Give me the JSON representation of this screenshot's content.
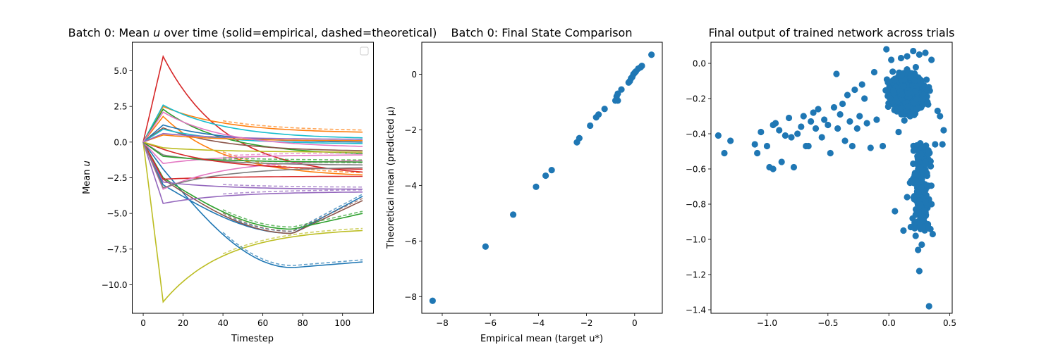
{
  "figure": {
    "background": "#ffffff"
  },
  "chart_data": [
    {
      "id": "left",
      "type": "line",
      "title": "Batch 0: Mean u over time (solid=empirical, dashed=theoretical)",
      "title_parts": [
        "Batch 0: Mean ",
        "u",
        " over time (solid=empirical, dashed=theoretical)"
      ],
      "xlabel": "Timestep",
      "ylabel_parts": [
        "Mean ",
        "u"
      ],
      "xlim": [
        -5.5,
        115.5
      ],
      "ylim": [
        -12.0,
        7.0
      ],
      "xticks": [
        0,
        20,
        40,
        60,
        80,
        100
      ],
      "xtick_labels": [
        "0",
        "20",
        "40",
        "60",
        "80",
        "100"
      ],
      "yticks": [
        -10.0,
        -7.5,
        -5.0,
        -2.5,
        0.0,
        2.5,
        5.0
      ],
      "ytick_labels": [
        "−10.0",
        "−7.5",
        "−5.0",
        "−2.5",
        "0.0",
        "2.5",
        "5.0"
      ],
      "grid": false,
      "legend": "top-right (empty)",
      "series": [
        {
          "color": "#d62728",
          "peak": 6.0,
          "final": -2.1,
          "dashed": false
        },
        {
          "color": "#bcbd22",
          "peak": -11.2,
          "final": -6.2,
          "dashed": true
        },
        {
          "color": "#1f77b4",
          "peak": -1.9,
          "final": -8.4,
          "min": -8.8,
          "dashed": true
        },
        {
          "color": "#1f77b4",
          "peak": -3.0,
          "final": -3.8,
          "min": -6.4,
          "dashed": true
        },
        {
          "color": "#8c564b",
          "peak": -2.6,
          "final": -4.1,
          "min": -6.4,
          "dashed": true
        },
        {
          "color": "#2ca02c",
          "peak": -2.5,
          "final": -5.0,
          "min": -6.1,
          "dashed": true
        },
        {
          "color": "#9467bd",
          "peak": -4.3,
          "final": -3.5,
          "dashed": true
        },
        {
          "color": "#9467bd",
          "peak": -2.8,
          "final": -3.3,
          "dashed": true
        },
        {
          "color": "#ff7f0e",
          "peak": 2.5,
          "final": 0.7,
          "dashed": true
        },
        {
          "color": "#17becf",
          "peak": 2.6,
          "final": 0.3,
          "dashed": false
        },
        {
          "color": "#2ca02c",
          "peak": 2.3,
          "final": -0.8,
          "dashed": false
        },
        {
          "color": "#ff7f0e",
          "peak": 1.8,
          "final": -2.3,
          "dashed": true
        },
        {
          "color": "#d62728",
          "peak": -2.6,
          "final": -2.4,
          "dashed": false
        },
        {
          "color": "#e377c2",
          "peak": -1.5,
          "final": -0.9,
          "dashed": true
        },
        {
          "color": "#e377c2",
          "peak": -3.3,
          "final": -1.3,
          "dashed": false
        },
        {
          "color": "#7f7f7f",
          "peak": -0.9,
          "final": -1.6,
          "dashed": true
        },
        {
          "color": "#1f77b4",
          "peak": 1.2,
          "final": 0.0,
          "dashed": false
        },
        {
          "color": "#2ca02c",
          "peak": -1.0,
          "final": -1.4,
          "dashed": true
        },
        {
          "color": "#8c564b",
          "peak": 1.0,
          "final": -0.6,
          "dashed": false
        },
        {
          "color": "#17becf",
          "peak": 0.9,
          "final": -0.1,
          "dashed": false
        },
        {
          "color": "#d62728",
          "peak": -0.5,
          "final": -1.9,
          "dashed": false
        },
        {
          "color": "#ff7f0e",
          "peak": 0.5,
          "final": 0.1,
          "dashed": false
        },
        {
          "color": "#bcbd22",
          "peak": -0.4,
          "final": -0.7,
          "dashed": false
        },
        {
          "color": "#9467bd",
          "peak": 0.6,
          "final": 0.2,
          "dashed": false
        },
        {
          "color": "#e377c2",
          "peak": 2.1,
          "final": -0.3,
          "dashed": false
        },
        {
          "color": "#7f7f7f",
          "peak": -3.2,
          "final": -1.8,
          "dashed": false
        }
      ]
    },
    {
      "id": "middle",
      "type": "scatter",
      "title": "Batch 0: Final State Comparison",
      "xlabel": "Empirical mean (target u*)",
      "ylabel": "Theoretical mean (predicted μ)",
      "xlim": [
        -8.85,
        1.15
      ],
      "ylim": [
        -8.6,
        1.15
      ],
      "xticks": [
        -8,
        -6,
        -4,
        -2,
        0
      ],
      "xtick_labels": [
        "−8",
        "−6",
        "−4",
        "−2",
        "0"
      ],
      "yticks": [
        -8,
        -6,
        -4,
        -2,
        0
      ],
      "ytick_labels": [
        "−8",
        "−6",
        "−4",
        "−2",
        "0"
      ],
      "grid": false,
      "color": "#1f77b4",
      "points": [
        [
          -8.4,
          -8.15
        ],
        [
          -6.2,
          -6.2
        ],
        [
          -5.05,
          -5.05
        ],
        [
          -4.1,
          -4.05
        ],
        [
          -3.7,
          -3.65
        ],
        [
          -3.45,
          -3.45
        ],
        [
          -2.4,
          -2.45
        ],
        [
          -2.3,
          -2.3
        ],
        [
          -1.85,
          -1.85
        ],
        [
          -1.6,
          -1.55
        ],
        [
          -1.5,
          -1.45
        ],
        [
          -1.25,
          -1.25
        ],
        [
          -0.8,
          -0.95
        ],
        [
          -0.75,
          -0.8
        ],
        [
          -0.7,
          -0.7
        ],
        [
          -0.55,
          -0.55
        ],
        [
          -0.7,
          -0.95
        ],
        [
          -0.25,
          -0.3
        ],
        [
          -0.2,
          -0.25
        ],
        [
          -0.15,
          -0.15
        ],
        [
          -0.1,
          -0.1
        ],
        [
          -0.05,
          0.0
        ],
        [
          0.0,
          0.05
        ],
        [
          0.05,
          0.1
        ],
        [
          0.15,
          0.2
        ],
        [
          0.25,
          0.25
        ],
        [
          0.3,
          0.3
        ],
        [
          0.7,
          0.7
        ]
      ]
    },
    {
      "id": "right",
      "type": "scatter",
      "title": "Final output of trained network across trials",
      "xlim": [
        -1.46,
        0.52
      ],
      "ylim": [
        -1.42,
        0.12
      ],
      "xticks": [
        -1.0,
        -0.5,
        0.0,
        0.5
      ],
      "xtick_labels": [
        "−1.0",
        "−0.5",
        "0.0",
        "0.5"
      ],
      "yticks": [
        -1.4,
        -1.2,
        -1.0,
        -0.8,
        -0.6,
        -0.4,
        -0.2,
        0.0
      ],
      "ytick_labels": [
        "−1.4",
        "−1.2",
        "−1.0",
        "−0.8",
        "−0.6",
        "−0.4",
        "−0.2",
        "0.0"
      ],
      "grid": false,
      "color": "#1f77b4",
      "points": [
        [
          -1.4,
          -0.41
        ],
        [
          -1.35,
          -0.51
        ],
        [
          -1.3,
          -0.44
        ],
        [
          -1.1,
          -0.46
        ],
        [
          -1.08,
          -0.51
        ],
        [
          -1.05,
          -0.39
        ],
        [
          -1.0,
          -0.47
        ],
        [
          -0.98,
          -0.59
        ],
        [
          -0.95,
          -0.6
        ],
        [
          -0.95,
          -0.35
        ],
        [
          -0.93,
          -0.34
        ],
        [
          -0.9,
          -0.38
        ],
        [
          -0.88,
          -0.56
        ],
        [
          -0.85,
          -0.41
        ],
        [
          -0.82,
          -0.31
        ],
        [
          -0.8,
          -0.42
        ],
        [
          -0.78,
          -0.59
        ],
        [
          -0.75,
          -0.4
        ],
        [
          -0.72,
          -0.36
        ],
        [
          -0.7,
          -0.3
        ],
        [
          -0.68,
          -0.47
        ],
        [
          -0.66,
          -0.47
        ],
        [
          -0.64,
          -0.33
        ],
        [
          -0.62,
          -0.28
        ],
        [
          -0.6,
          -0.37
        ],
        [
          -0.58,
          -0.26
        ],
        [
          -0.55,
          -0.42
        ],
        [
          -0.53,
          -0.32
        ],
        [
          -0.5,
          -0.35
        ],
        [
          -0.48,
          -0.51
        ],
        [
          -0.45,
          -0.25
        ],
        [
          -0.43,
          -0.06
        ],
        [
          -0.42,
          -0.37
        ],
        [
          -0.4,
          -0.29
        ],
        [
          -0.38,
          -0.23
        ],
        [
          -0.36,
          -0.44
        ],
        [
          -0.34,
          -0.18
        ],
        [
          -0.32,
          -0.33
        ],
        [
          -0.3,
          -0.47
        ],
        [
          -0.28,
          -0.15
        ],
        [
          -0.26,
          -0.37
        ],
        [
          -0.24,
          -0.3
        ],
        [
          -0.22,
          -0.12
        ],
        [
          -0.2,
          -0.2
        ],
        [
          -0.18,
          -0.34
        ],
        [
          -0.15,
          -0.48
        ],
        [
          -0.12,
          -0.05
        ],
        [
          -0.1,
          -0.32
        ],
        [
          -0.05,
          -0.47
        ],
        [
          -0.02,
          0.08
        ],
        [
          0.02,
          0.02
        ],
        [
          0.05,
          -0.84
        ],
        [
          0.08,
          -0.39
        ],
        [
          0.12,
          -0.95
        ],
        [
          0.15,
          -0.76
        ],
        [
          0.18,
          -0.93
        ],
        [
          0.2,
          -0.57
        ],
        [
          0.22,
          -0.98
        ],
        [
          0.24,
          -1.06
        ],
        [
          0.25,
          -1.18
        ],
        [
          0.27,
          -1.03
        ],
        [
          0.28,
          -0.88
        ],
        [
          0.3,
          -0.55
        ],
        [
          0.32,
          -0.7
        ],
        [
          0.33,
          -1.38
        ],
        [
          0.35,
          -0.8
        ],
        [
          0.36,
          -0.97
        ],
        [
          0.38,
          -0.46
        ],
        [
          0.4,
          -0.27
        ],
        [
          0.42,
          -0.3
        ],
        [
          0.44,
          -0.46
        ],
        [
          0.45,
          -0.38
        ],
        [
          0.3,
          0.06
        ],
        [
          0.25,
          0.05
        ],
        [
          0.2,
          0.07
        ],
        [
          0.15,
          0.04
        ],
        [
          0.1,
          0.03
        ],
        [
          0.35,
          0.02
        ]
      ],
      "cluster": {
        "x_range": [
          -0.35,
          0.45
        ],
        "y_range": [
          -0.45,
          0.05
        ],
        "count": 700
      },
      "tail": {
        "x_range": [
          0.1,
          0.4
        ],
        "y_range": [
          -0.95,
          -0.45
        ],
        "count": 200
      }
    }
  ]
}
